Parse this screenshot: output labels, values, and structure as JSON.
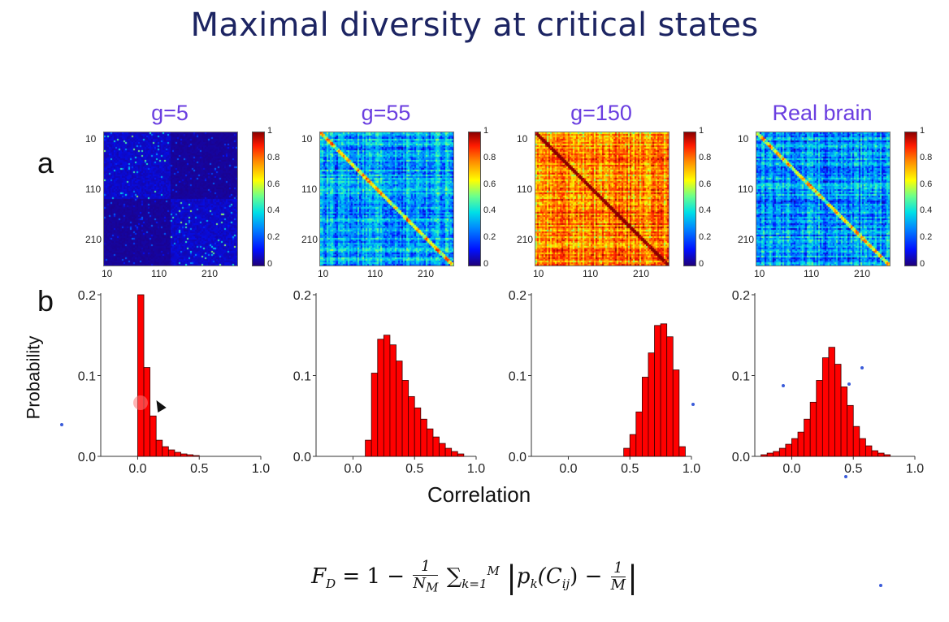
{
  "slide": {
    "title": "Maximal diversity at critical states",
    "panel_a": "a",
    "panel_b": "b",
    "formula": {
      "lhs": "F",
      "lhs_sub": "D",
      "eq": " = 1 − ",
      "frac1_num": "1",
      "frac1_den_main": "N",
      "frac1_den_sub": "M",
      "sum": "∑",
      "sum_sub": "k=1",
      "sum_sup": "M",
      "p": "p",
      "p_sub": "k",
      "c": "(C",
      "c_sub": "ij",
      "close": ") − ",
      "frac2_num": "1",
      "frac2_den": "M"
    }
  },
  "colormap": {
    "name": "jet",
    "stops": [
      "#1f007a",
      "#0010ff",
      "#0088ff",
      "#00e0e6",
      "#6bff8c",
      "#ffff00",
      "#ff8c00",
      "#ff1a00",
      "#8b0000"
    ],
    "ticks": [
      "0",
      "0.2",
      "0.4",
      "0.6",
      "0.8",
      "1"
    ]
  },
  "heatmaps": [
    {
      "title": "g=5",
      "mean": 0.05,
      "y_ticks": [
        "10",
        "110",
        "210"
      ],
      "x_ticks": [
        "10",
        "110",
        "210"
      ]
    },
    {
      "title": "g=55",
      "mean": 0.3,
      "y_ticks": [
        "10",
        "110",
        "210"
      ],
      "x_ticks": [
        "10",
        "110",
        "210"
      ]
    },
    {
      "title": "g=150",
      "mean": 0.75,
      "y_ticks": [
        "10",
        "110",
        "210"
      ],
      "x_ticks": [
        "10",
        "110",
        "210"
      ]
    },
    {
      "title": "Real brain",
      "mean": 0.28,
      "y_ticks": [
        "10",
        "110",
        "210"
      ],
      "x_ticks": [
        "10",
        "110",
        "210"
      ]
    }
  ],
  "chart_data": {
    "type": "bar",
    "xlabel": "Correlation",
    "ylabel": "Probability",
    "xlim": [
      -0.3,
      1.0
    ],
    "ylim": [
      0,
      0.2
    ],
    "x_ticks": [
      "0.0",
      "0.5",
      "1.0"
    ],
    "y_ticks": [
      "0.0",
      "0.1",
      "0.2"
    ],
    "bin_width": 0.05,
    "bar_color": "#ff0000",
    "series": [
      {
        "bin_starts": [
          0.0,
          0.05,
          0.1,
          0.15,
          0.2,
          0.25,
          0.3,
          0.35,
          0.4,
          0.45
        ],
        "values": [
          0.2,
          0.11,
          0.05,
          0.02,
          0.012,
          0.008,
          0.005,
          0.003,
          0.002,
          0.001
        ]
      },
      {
        "bin_starts": [
          0.1,
          0.15,
          0.2,
          0.25,
          0.3,
          0.35,
          0.4,
          0.45,
          0.5,
          0.55,
          0.6,
          0.65,
          0.7,
          0.75,
          0.8,
          0.85
        ],
        "values": [
          0.02,
          0.103,
          0.145,
          0.15,
          0.138,
          0.118,
          0.094,
          0.074,
          0.06,
          0.046,
          0.034,
          0.024,
          0.016,
          0.01,
          0.006,
          0.003
        ]
      },
      {
        "bin_starts": [
          0.45,
          0.5,
          0.55,
          0.6,
          0.65,
          0.7,
          0.75,
          0.8,
          0.85,
          0.9
        ],
        "values": [
          0.01,
          0.027,
          0.055,
          0.098,
          0.128,
          0.162,
          0.164,
          0.148,
          0.107,
          0.012
        ]
      },
      {
        "bin_starts": [
          -0.25,
          -0.2,
          -0.15,
          -0.1,
          -0.05,
          0.0,
          0.05,
          0.1,
          0.15,
          0.2,
          0.25,
          0.3,
          0.35,
          0.4,
          0.45,
          0.5,
          0.55,
          0.6,
          0.65,
          0.7,
          0.75
        ],
        "values": [
          0.002,
          0.004,
          0.006,
          0.01,
          0.015,
          0.022,
          0.03,
          0.046,
          0.067,
          0.094,
          0.122,
          0.135,
          0.114,
          0.086,
          0.063,
          0.037,
          0.022,
          0.013,
          0.007,
          0.004,
          0.002
        ]
      }
    ]
  }
}
